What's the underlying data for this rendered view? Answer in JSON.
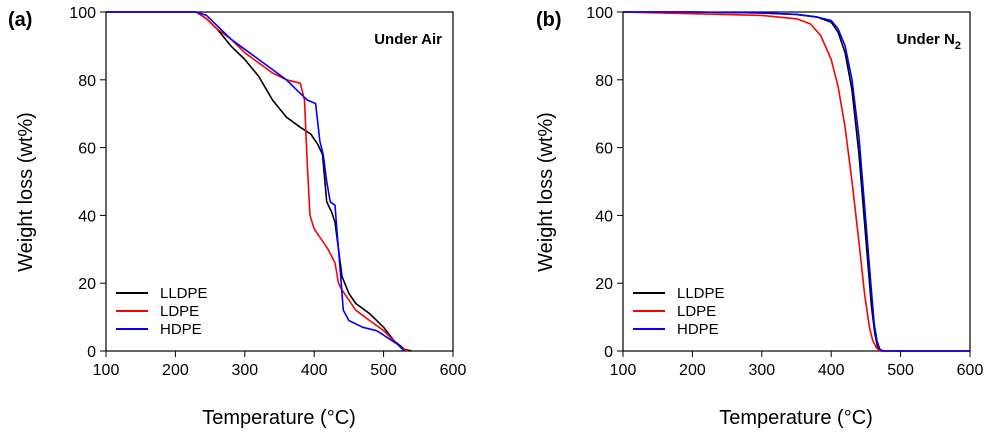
{
  "chart_data": [
    {
      "type": "line",
      "panel_label": "(a)",
      "annotation": "Under Air",
      "xlabel": "Temperature (°C)",
      "ylabel": "Weight loss (wt%)",
      "xlim": [
        100,
        600
      ],
      "ylim": [
        0,
        100
      ],
      "xticks": [
        100,
        200,
        300,
        400,
        500,
        600
      ],
      "yticks": [
        0,
        20,
        40,
        60,
        80,
        100
      ],
      "legend_position": "bottom-left",
      "series": [
        {
          "name": "LLDPE",
          "color": "#000000",
          "points": [
            [
              100,
              100
            ],
            [
              200,
              100
            ],
            [
              230,
              100
            ],
            [
              245,
              98
            ],
            [
              260,
              95
            ],
            [
              280,
              90
            ],
            [
              300,
              86
            ],
            [
              320,
              81
            ],
            [
              340,
              74
            ],
            [
              360,
              69
            ],
            [
              380,
              66
            ],
            [
              395,
              64
            ],
            [
              405,
              61
            ],
            [
              412,
              58
            ],
            [
              418,
              44
            ],
            [
              425,
              41
            ],
            [
              430,
              38
            ],
            [
              435,
              30
            ],
            [
              440,
              22
            ],
            [
              450,
              17
            ],
            [
              460,
              14
            ],
            [
              480,
              11
            ],
            [
              500,
              7
            ],
            [
              515,
              3
            ],
            [
              530,
              0.5
            ],
            [
              540,
              0
            ]
          ]
        },
        {
          "name": "LDPE",
          "color": "#ff0000",
          "points": [
            [
              100,
              100
            ],
            [
              200,
              100
            ],
            [
              230,
              100
            ],
            [
              245,
              98
            ],
            [
              260,
              95
            ],
            [
              280,
              92
            ],
            [
              300,
              88
            ],
            [
              320,
              85
            ],
            [
              340,
              82
            ],
            [
              360,
              80
            ],
            [
              380,
              79
            ],
            [
              386,
              74
            ],
            [
              390,
              55
            ],
            [
              394,
              40
            ],
            [
              400,
              36
            ],
            [
              410,
              33
            ],
            [
              420,
              30
            ],
            [
              430,
              26
            ],
            [
              435,
              20
            ],
            [
              440,
              18
            ],
            [
              450,
              15
            ],
            [
              460,
              12
            ],
            [
              480,
              9
            ],
            [
              500,
              6
            ],
            [
              515,
              3
            ],
            [
              525,
              1
            ],
            [
              535,
              0
            ]
          ]
        },
        {
          "name": "HDPE",
          "color": "#0000ff",
          "points": [
            [
              100,
              100
            ],
            [
              200,
              100
            ],
            [
              230,
              100
            ],
            [
              245,
              99
            ],
            [
              260,
              96
            ],
            [
              280,
              92
            ],
            [
              300,
              89
            ],
            [
              320,
              86
            ],
            [
              340,
              83
            ],
            [
              360,
              80
            ],
            [
              380,
              76
            ],
            [
              390,
              74
            ],
            [
              402,
              73
            ],
            [
              408,
              62
            ],
            [
              413,
              58
            ],
            [
              418,
              50
            ],
            [
              423,
              44
            ],
            [
              430,
              43
            ],
            [
              433,
              35
            ],
            [
              437,
              25
            ],
            [
              442,
              12
            ],
            [
              450,
              9
            ],
            [
              470,
              7
            ],
            [
              490,
              6
            ],
            [
              505,
              4
            ],
            [
              520,
              2
            ],
            [
              530,
              0
            ]
          ]
        }
      ]
    },
    {
      "type": "line",
      "panel_label": "(b)",
      "annotation_main": "Under N",
      "annotation_sub": "2",
      "xlabel": "Temperature (°C)",
      "ylabel": "Weight loss (wt%)",
      "xlim": [
        100,
        600
      ],
      "ylim": [
        0,
        100
      ],
      "xticks": [
        100,
        200,
        300,
        400,
        500,
        600
      ],
      "yticks": [
        0,
        20,
        40,
        60,
        80,
        100
      ],
      "legend_position": "bottom-left",
      "series": [
        {
          "name": "LLDPE",
          "color": "#000000",
          "points": [
            [
              100,
              100
            ],
            [
              200,
              100
            ],
            [
              300,
              99.7
            ],
            [
              350,
              99.3
            ],
            [
              380,
              98.5
            ],
            [
              400,
              97
            ],
            [
              410,
              94
            ],
            [
              420,
              88
            ],
            [
              430,
              77
            ],
            [
              440,
              58
            ],
            [
              450,
              33
            ],
            [
              458,
              13
            ],
            [
              463,
              5
            ],
            [
              467,
              1
            ],
            [
              470,
              0
            ],
            [
              600,
              0
            ]
          ]
        },
        {
          "name": "LDPE",
          "color": "#ff0000",
          "points": [
            [
              100,
              100
            ],
            [
              200,
              99.5
            ],
            [
              300,
              99
            ],
            [
              350,
              98
            ],
            [
              370,
              96.5
            ],
            [
              385,
              93
            ],
            [
              400,
              86
            ],
            [
              410,
              78
            ],
            [
              420,
              66
            ],
            [
              430,
              50
            ],
            [
              440,
              32
            ],
            [
              448,
              17
            ],
            [
              455,
              7
            ],
            [
              460,
              3
            ],
            [
              465,
              1
            ],
            [
              470,
              0
            ],
            [
              600,
              0
            ]
          ]
        },
        {
          "name": "HDPE",
          "color": "#0000ff",
          "points": [
            [
              100,
              100
            ],
            [
              200,
              100
            ],
            [
              300,
              99.7
            ],
            [
              350,
              99.3
            ],
            [
              380,
              98.5
            ],
            [
              400,
              97.5
            ],
            [
              410,
              95
            ],
            [
              420,
              90
            ],
            [
              430,
              80
            ],
            [
              440,
              63
            ],
            [
              450,
              38
            ],
            [
              457,
              20
            ],
            [
              462,
              8
            ],
            [
              466,
              3
            ],
            [
              470,
              0.5
            ],
            [
              475,
              0
            ],
            [
              600,
              0
            ]
          ]
        }
      ]
    }
  ]
}
